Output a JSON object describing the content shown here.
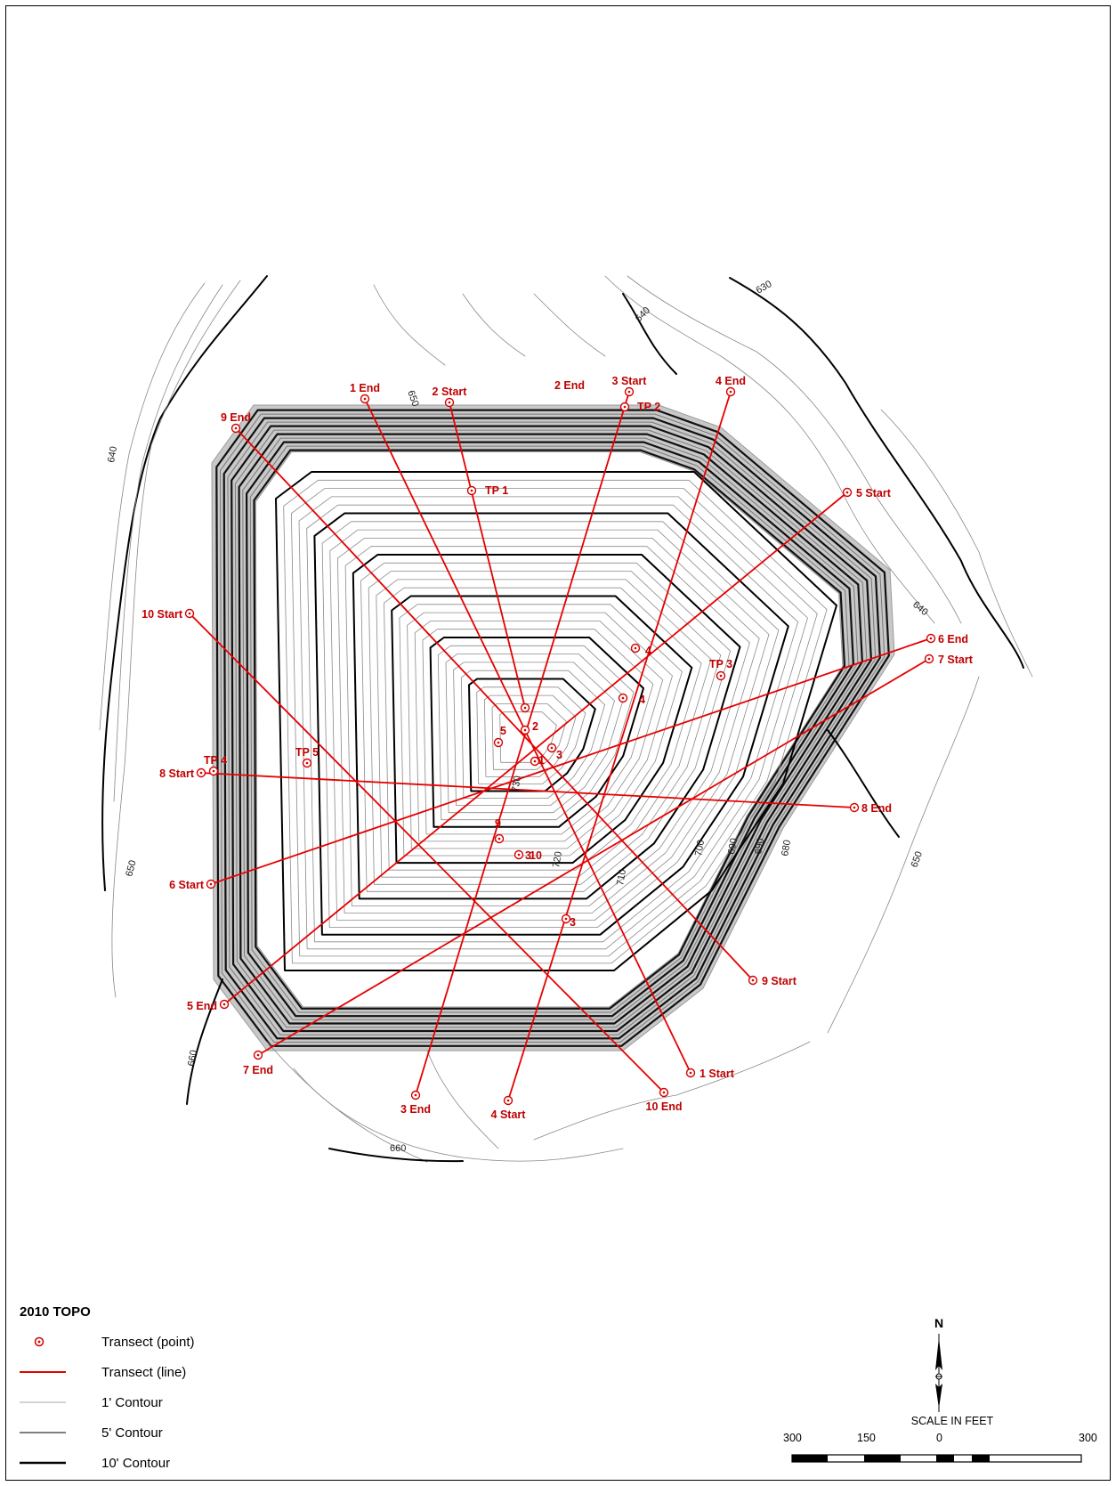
{
  "legend": {
    "title": "2010 TOPO",
    "items": [
      {
        "label": "Transect (point)",
        "symbol": "point-icon",
        "color": "#d40000"
      },
      {
        "label": "Transect (line)",
        "symbol": "red-line-icon",
        "color": "#e60000"
      },
      {
        "label": "1' Contour",
        "symbol": "thin-line-icon",
        "color": "#aaaaaa"
      },
      {
        "label": "5' Contour",
        "symbol": "medium-line-icon",
        "color": "#555555"
      },
      {
        "label": "10' Contour",
        "symbol": "thick-line-icon",
        "color": "#000000"
      }
    ]
  },
  "north_arrow": {
    "label": "N"
  },
  "scale_bar": {
    "title": "SCALE IN FEET",
    "ticks": [
      "300",
      "150",
      "0",
      "300"
    ]
  },
  "contour_labels": [
    "630",
    "640",
    "640",
    "640",
    "650",
    "650",
    "650",
    "660",
    "660",
    "680",
    "690",
    "690",
    "700",
    "710",
    "720",
    "730"
  ],
  "transects": [
    {
      "id": "1",
      "start_label": "1 Start",
      "end_label": "1 End"
    },
    {
      "id": "2",
      "start_label": "2 Start",
      "end_label": "2 End"
    },
    {
      "id": "3",
      "start_label": "3 Start",
      "end_label": "3 End"
    },
    {
      "id": "4",
      "start_label": "4 Start",
      "end_label": "4 End"
    },
    {
      "id": "5",
      "start_label": "5 Start",
      "end_label": "5 End"
    },
    {
      "id": "6",
      "start_label": "6 Start",
      "end_label": "6 End"
    },
    {
      "id": "7",
      "start_label": "7 Start",
      "end_label": "7 End"
    },
    {
      "id": "8",
      "start_label": "8 Start",
      "end_label": "8 End"
    },
    {
      "id": "9",
      "start_label": "9 Start",
      "end_label": "9 End"
    },
    {
      "id": "10",
      "start_label": "10 Start",
      "end_label": "10 End"
    }
  ],
  "test_pits": [
    "TP 1",
    "TP 2",
    "TP 3",
    "TP 4",
    "TP 5"
  ],
  "inner_point_labels": [
    "1",
    "2",
    "3",
    "3",
    "3",
    "4",
    "4",
    "5",
    "9",
    "10"
  ],
  "colors": {
    "transect": "#e60000",
    "label": "#c00000"
  }
}
